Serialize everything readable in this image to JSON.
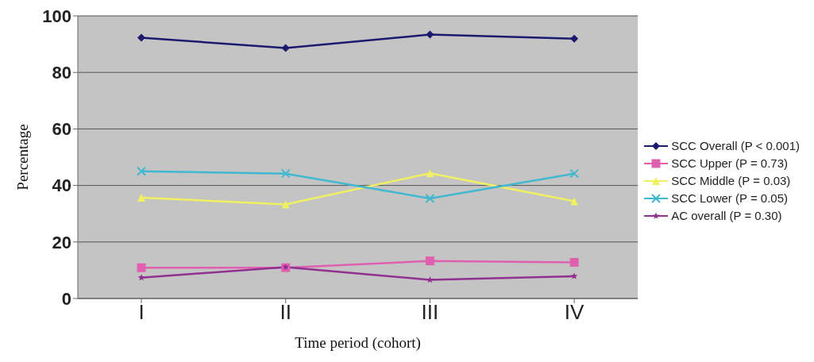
{
  "chart_data": {
    "type": "line",
    "xlabel": "Time period (cohort)",
    "ylabel": "Percentage",
    "categories": [
      "I",
      "II",
      "III",
      "IV"
    ],
    "series": [
      {
        "name": "SCC Overall (P < 0.001)",
        "color": "#1a1a6e",
        "marker": "diamond",
        "values": [
          92.3,
          88.6,
          93.4,
          91.9
        ]
      },
      {
        "name": "SCC Upper (P = 0.73)",
        "color": "#e060b0",
        "marker": "square",
        "values": [
          10.9,
          10.9,
          13.3,
          12.8
        ]
      },
      {
        "name": "SCC Middle (P = 0.03)",
        "color": "#f0f060",
        "marker": "triangle",
        "values": [
          35.7,
          33.3,
          44.3,
          34.4
        ]
      },
      {
        "name": "SCC Lower (P = 0.05)",
        "color": "#40b8d0",
        "marker": "cross",
        "values": [
          45.0,
          44.2,
          35.4,
          44.2
        ]
      },
      {
        "name": "AC overall (P = 0.30)",
        "color": "#903090",
        "marker": "star",
        "values": [
          7.4,
          11.1,
          6.6,
          7.9
        ]
      }
    ],
    "ylim": [
      0,
      100
    ],
    "yticks": [
      0,
      20,
      40,
      60,
      80,
      100
    ],
    "grid": "y",
    "legend": "right",
    "line_style": "solid"
  }
}
